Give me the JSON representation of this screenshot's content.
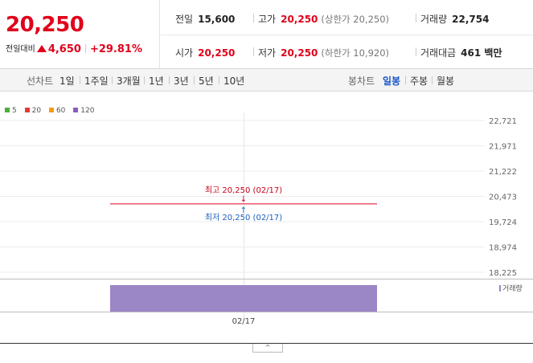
{
  "quote": {
    "price": "20,250",
    "change_label": "전일대비",
    "change_value": "4,650",
    "change_pct": "+29.81%",
    "up_color": "#e0001b"
  },
  "stats": {
    "prev_close": {
      "label": "전일",
      "value": "15,600"
    },
    "high": {
      "label": "고가",
      "value": "20,250",
      "sub": "(상한가 20,250)"
    },
    "volume": {
      "label": "거래량",
      "value": "22,754"
    },
    "open": {
      "label": "시가",
      "value": "20,250"
    },
    "low": {
      "label": "저가",
      "value": "20,250",
      "sub": "(하한가 10,920)"
    },
    "amount": {
      "label": "거래대금",
      "value": "461 백만"
    }
  },
  "periods": {
    "line_label": "선차트",
    "line_items": [
      "1일",
      "1주일",
      "3개월",
      "1년",
      "3년",
      "5년",
      "10년"
    ],
    "candle_label": "봉차트",
    "candle_items": [
      "일봉",
      "주봉",
      "월봉"
    ],
    "active_candle": "일봉"
  },
  "legend": [
    {
      "label": "5",
      "color": "#4caf3c"
    },
    {
      "label": "20",
      "color": "#e53935"
    },
    {
      "label": "60",
      "color": "#f39c12"
    },
    {
      "label": "120",
      "color": "#8e5bbf"
    }
  ],
  "chart_data": {
    "type": "bar",
    "price_axis": {
      "ticks": [
        22721,
        21971,
        21222,
        20473,
        19724,
        18974,
        18225
      ],
      "tick_labels": [
        "22,721",
        "21,971",
        "21,222",
        "20,473",
        "19,724",
        "18,974",
        "18,225"
      ],
      "ylim": [
        18225,
        22721
      ]
    },
    "categories": [
      "02/17"
    ],
    "price_series": {
      "name": "일봉",
      "open": 20250,
      "high": 20250,
      "low": 20250,
      "close": 20250,
      "color": "#e0001b"
    },
    "volume_series": {
      "name": "거래량",
      "values": [
        22754
      ],
      "color": "#9b86c6"
    },
    "annotations": {
      "high_text": "최고 20,250 (02/17)",
      "low_text": "최저 20,250 (02/17)",
      "high_arrow": "↓",
      "low_arrow": "↑"
    },
    "volume_legend": "거래량",
    "x_tick": "02/17"
  },
  "collapse_icon": "^"
}
